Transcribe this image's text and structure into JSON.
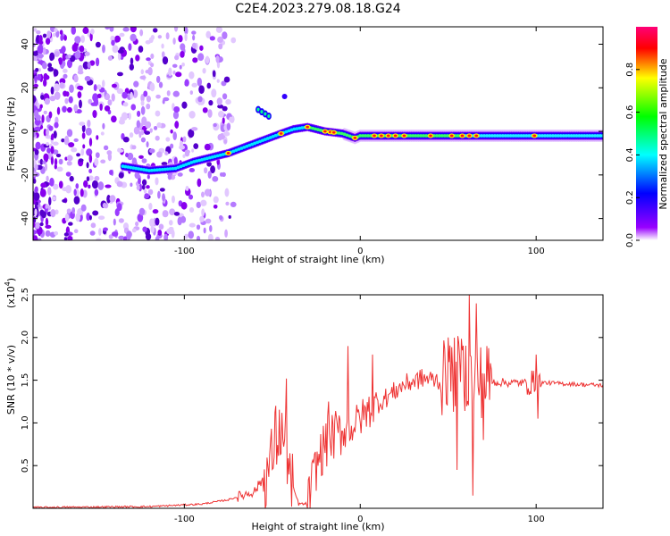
{
  "title": "C2E4.2023.279.08.18.G24",
  "chart_data": [
    {
      "type": "heatmap",
      "panel": "spectrogram",
      "xlabel": "Height of straight line (km)",
      "ylabel": "Frequency (Hz)",
      "xlim": [
        -186,
        138
      ],
      "ylim": [
        -50,
        48
      ],
      "xticks": [
        -100,
        0,
        100
      ],
      "xtick_labels": [
        "-100",
        "0",
        "100"
      ],
      "yticks": [
        -40,
        -20,
        0,
        20,
        40
      ],
      "ytick_labels": [
        "-40",
        "-20",
        "0",
        "20",
        "40"
      ],
      "grid": false,
      "colorbar": {
        "label": "Normalized spectral amplitude",
        "range": [
          0,
          1
        ],
        "ticks": [
          0.0,
          0.2,
          0.4,
          0.6,
          0.8
        ],
        "tick_labels": [
          "0.0",
          "0.2",
          "0.4",
          "0.6",
          "0.8"
        ],
        "colormap": [
          "#ffffff",
          "#9900ff",
          "#0000ff",
          "#00ffff",
          "#00ff00",
          "#ffff00",
          "#ff0000",
          "#ff0077"
        ]
      },
      "track": {
        "x": [
          -135,
          -120,
          -105,
          -95,
          -85,
          -75,
          -65,
          -55,
          -45,
          -38,
          -30,
          -20,
          -10,
          -3,
          0,
          10,
          30,
          50,
          70,
          90,
          110,
          138
        ],
        "y": [
          -16,
          -18,
          -17,
          -14,
          -12,
          -10,
          -7,
          -4,
          -1,
          1,
          2,
          0,
          -1,
          -3,
          -2,
          -2,
          -2,
          -2,
          -2,
          -2,
          -2,
          -2
        ]
      }
    },
    {
      "type": "line",
      "panel": "snr",
      "xlabel": "Height of straight line (km)",
      "ylabel": "SNR (10 * v/v)",
      "ylabel_scale": "(x10",
      "ylabel_exponent": "4",
      "xlim": [
        -186,
        138
      ],
      "ylim": [
        0,
        2.5
      ],
      "xticks": [
        -100,
        0,
        100
      ],
      "xtick_labels": [
        "-100",
        "0",
        "100"
      ],
      "yticks": [
        0.5,
        1.0,
        1.5,
        2.0,
        2.5
      ],
      "ytick_labels": [
        "0.5",
        "1.0",
        "1.5",
        "2.0",
        "2.5"
      ],
      "grid": false,
      "color": "#ee3333",
      "envelope": {
        "x": [
          -186,
          -120,
          -90,
          -75,
          -60,
          -52,
          -48,
          -45,
          -42,
          -39,
          -35,
          -30,
          -25,
          -20,
          -15,
          -10,
          -5,
          0,
          5,
          15,
          25,
          35,
          45,
          52,
          58,
          63,
          68,
          75,
          85,
          95,
          100,
          105,
          115,
          125,
          138
        ],
        "y": [
          0.01,
          0.02,
          0.05,
          0.1,
          0.2,
          0.45,
          0.8,
          0.9,
          0.7,
          0.3,
          0.05,
          0.05,
          0.5,
          0.75,
          0.85,
          0.9,
          0.95,
          1.05,
          1.15,
          1.3,
          1.45,
          1.52,
          1.5,
          1.55,
          1.6,
          1.55,
          1.5,
          1.48,
          1.47,
          1.47,
          1.47,
          1.47,
          1.46,
          1.45,
          1.44
        ]
      },
      "spikes": [
        {
          "x": -48,
          "y": 1.2
        },
        {
          "x": -42,
          "y": 1.52
        },
        {
          "x": -39,
          "y": 0.02
        },
        {
          "x": -18,
          "y": 1.25
        },
        {
          "x": -7,
          "y": 1.9
        },
        {
          "x": 7,
          "y": 1.8
        },
        {
          "x": 50,
          "y": 2.0
        },
        {
          "x": 55,
          "y": 0.45
        },
        {
          "x": 58,
          "y": 1.85
        },
        {
          "x": 62,
          "y": 2.5
        },
        {
          "x": 64,
          "y": 0.15
        },
        {
          "x": 66,
          "y": 2.4
        },
        {
          "x": 70,
          "y": 0.8
        },
        {
          "x": 72,
          "y": 1.9
        },
        {
          "x": 100,
          "y": 1.8
        },
        {
          "x": 101,
          "y": 1.05
        }
      ]
    }
  ]
}
